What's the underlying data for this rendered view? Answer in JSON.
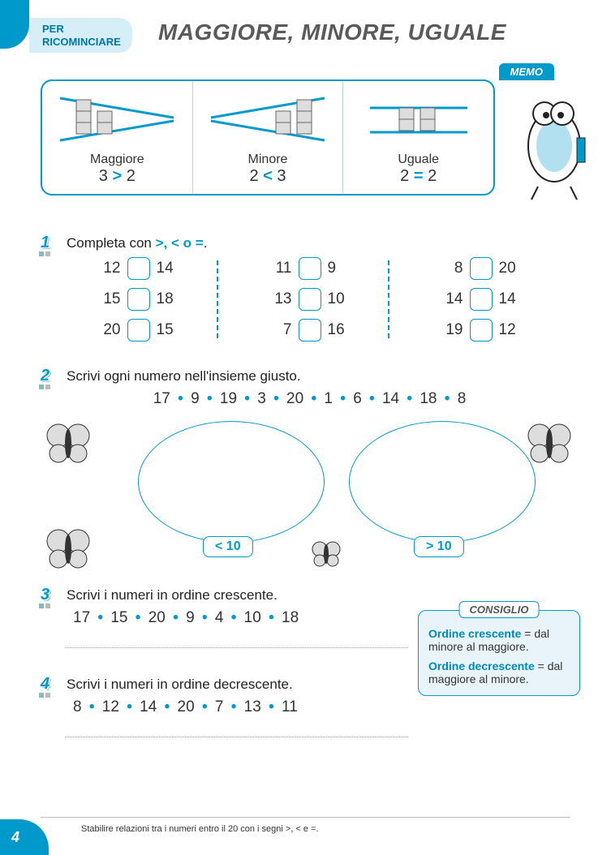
{
  "colors": {
    "primary": "#0099cc",
    "lightblue": "#d6eef7",
    "boxbg": "#e8f4fa",
    "text": "#333333"
  },
  "header": {
    "tab_line1": "PER",
    "tab_line2": "RICOMINCIARE",
    "title": "MAGGIORE, MINORE, UGUALE"
  },
  "memo": {
    "label": "MEMO",
    "cells": [
      {
        "caption": "Maggiore",
        "a": "3",
        "op": ">",
        "b": "2"
      },
      {
        "caption": "Minore",
        "a": "2",
        "op": "<",
        "b": "3"
      },
      {
        "caption": "Uguale",
        "a": "2",
        "op": "=",
        "b": "2"
      }
    ]
  },
  "ex1": {
    "num": "1",
    "prompt_pre": "Completa con ",
    "prompt_ops": ">, < o =",
    "prompt_post": ".",
    "cols": [
      [
        {
          "a": "12",
          "b": "14"
        },
        {
          "a": "15",
          "b": "18"
        },
        {
          "a": "20",
          "b": "15"
        }
      ],
      [
        {
          "a": "11",
          "b": "9"
        },
        {
          "a": "13",
          "b": "10"
        },
        {
          "a": "7",
          "b": "16"
        }
      ],
      [
        {
          "a": "8",
          "b": "20"
        },
        {
          "a": "14",
          "b": "14"
        },
        {
          "a": "19",
          "b": "12"
        }
      ]
    ]
  },
  "ex2": {
    "num": "2",
    "prompt": "Scrivi ogni numero nell'insieme giusto.",
    "numbers": [
      "17",
      "9",
      "19",
      "3",
      "20",
      "1",
      "6",
      "14",
      "18",
      "8"
    ],
    "label_left": "< 10",
    "label_right": "> 10"
  },
  "ex3": {
    "num": "3",
    "prompt": "Scrivi i numeri in ordine crescente.",
    "numbers": [
      "17",
      "15",
      "20",
      "9",
      "4",
      "10",
      "18"
    ]
  },
  "ex4": {
    "num": "4",
    "prompt": "Scrivi i numeri in ordine decrescente.",
    "numbers": [
      "8",
      "12",
      "14",
      "20",
      "7",
      "13",
      "11"
    ]
  },
  "consiglio": {
    "label": "CONSIGLIO",
    "line1_term": "Ordine crescente",
    "line1_rest": " = dal minore al maggiore.",
    "line2_term": "Ordine decrescente",
    "line2_rest": " = dal maggiore al minore."
  },
  "footer": {
    "text": "Stabilire relazioni tra i numeri entro il 20 con i segni >, < e =.",
    "page": "4"
  }
}
